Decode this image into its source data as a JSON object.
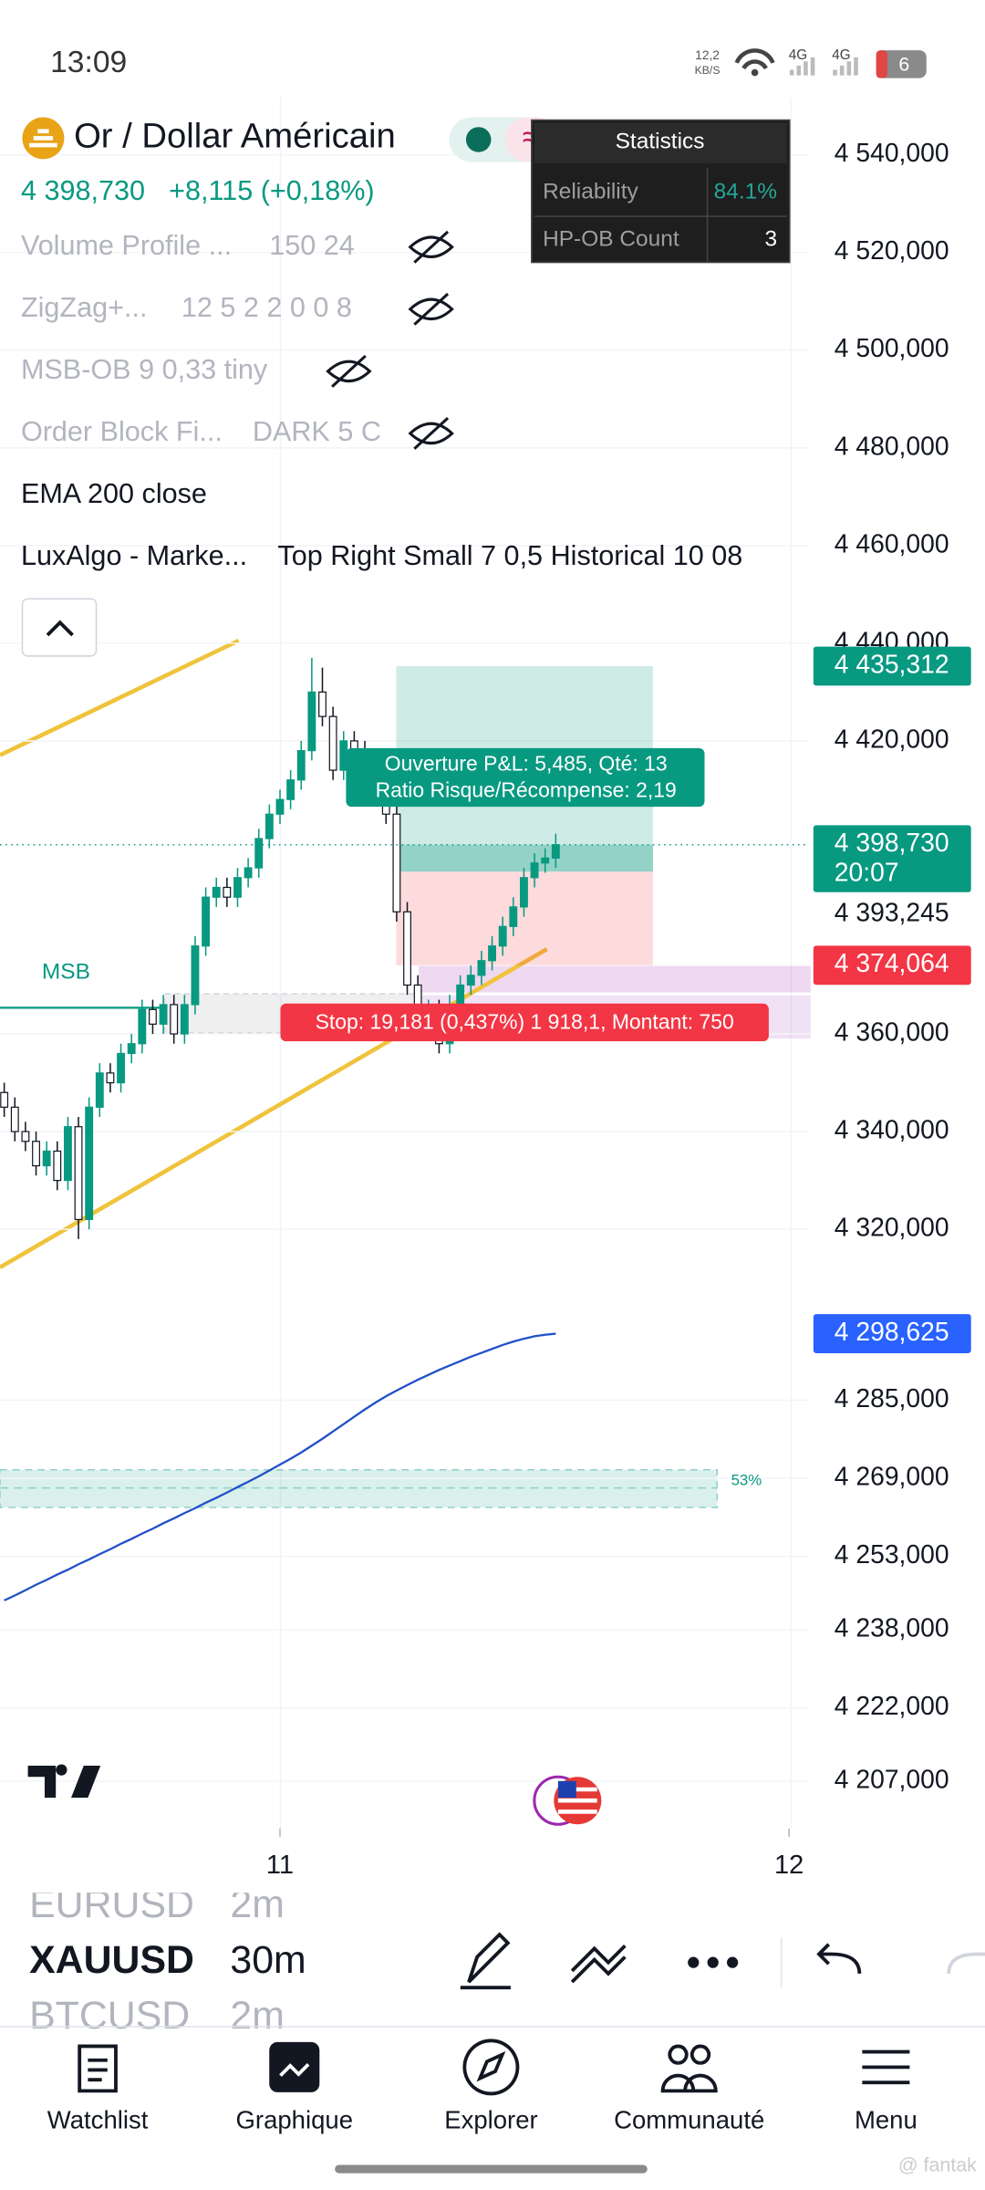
{
  "status_bar": {
    "time": "13:09",
    "net_speed": "12,2",
    "net_unit": "KB/S",
    "signal_1": "4G",
    "signal_2": "4G",
    "battery": "6"
  },
  "symbol": {
    "name": "Or / Dollar Américain",
    "price": "4 398,730",
    "change": "+8,115 (+0,18%)"
  },
  "indicators": [
    {
      "name": "Volume Profile ...",
      "params": "150 24"
    },
    {
      "name": "ZigZag+...",
      "params": "12 5 2 2 0 0 8"
    },
    {
      "name": "MSB-OB 9 0,33 tiny",
      "params": ""
    },
    {
      "name": "Order Block Fi...",
      "params": "DARK 5 C"
    },
    {
      "name": "EMA 200 close",
      "params": ""
    },
    {
      "name": "LuxAlgo - Marke...",
      "params": "Top Right Small 7 0,5 Historical 10 08"
    }
  ],
  "statistics": {
    "title": "Statistics",
    "rows": [
      {
        "label": "Reliability",
        "value": "84.1%"
      },
      {
        "label": "HP-OB Count",
        "value": "3"
      }
    ]
  },
  "chart_data": {
    "type": "candlestick",
    "ylim": [
      4197.3,
      4551.7
    ],
    "xlim": [
      -0.4,
      75.9
    ],
    "yticks": [
      {
        "value": 4540,
        "label": "4 540,000"
      },
      {
        "value": 4520,
        "label": "4 520,000"
      },
      {
        "value": 4500,
        "label": "4 500,000"
      },
      {
        "value": 4480,
        "label": "4 480,000"
      },
      {
        "value": 4460,
        "label": "4 460,000"
      },
      {
        "value": 4440,
        "label": "4 440,000"
      },
      {
        "value": 4420,
        "label": "4 420,000"
      },
      {
        "value": 4360,
        "label": "4 360,000"
      },
      {
        "value": 4340,
        "label": "4 340,000"
      },
      {
        "value": 4320,
        "label": "4 320,000"
      },
      {
        "value": 4285,
        "label": "4 285,000"
      },
      {
        "value": 4269,
        "label": "4 269,000"
      },
      {
        "value": 4253,
        "label": "4 253,000"
      },
      {
        "value": 4238,
        "label": "4 238,000"
      },
      {
        "value": 4222,
        "label": "4 222,000"
      },
      {
        "value": 4207,
        "label": "4 207,000"
      }
    ],
    "xticks": [
      {
        "value": 26,
        "label": "11"
      },
      {
        "value": 74,
        "label": "12"
      }
    ],
    "up_color": "#089981",
    "down_color": "#ffffff",
    "x": [
      0,
      1,
      2,
      3,
      4,
      5,
      6,
      7,
      8,
      9,
      10,
      11,
      12,
      13,
      14,
      15,
      16,
      17,
      18,
      19,
      20,
      21,
      22,
      23,
      24,
      25,
      26,
      27,
      28,
      29,
      30,
      31,
      32,
      33,
      34,
      35,
      36,
      37,
      38,
      39,
      40,
      41,
      42,
      43,
      44,
      45,
      46,
      47,
      48,
      49,
      50,
      51,
      52
    ],
    "open": [
      4348,
      4345,
      4340,
      4338,
      4333,
      4336,
      4330,
      4341,
      4322,
      4345,
      4352,
      4350,
      4356,
      4358,
      4365,
      4362,
      4366,
      4360,
      4366,
      4378,
      4388,
      4390,
      4388,
      4392,
      4394,
      4400,
      4405,
      4408,
      4412,
      4418,
      4430,
      4425,
      4414,
      4420,
      4418,
      4415,
      4412,
      4405,
      4385,
      4370,
      4362,
      4365,
      4358,
      4366,
      4370,
      4372,
      4375,
      4378,
      4382,
      4386,
      4392,
      4395,
      4396
    ],
    "high": [
      4350,
      4347,
      4342,
      4340,
      4338,
      4338,
      4343,
      4343,
      4347,
      4354,
      4354,
      4358,
      4360,
      4367,
      4367,
      4368,
      4368,
      4368,
      4380,
      4390,
      4392,
      4392,
      4394,
      4396,
      4402,
      4407,
      4410,
      4414,
      4420,
      4437,
      4435,
      4427,
      4422,
      4422,
      4420,
      4417,
      4414,
      4407,
      4387,
      4372,
      4367,
      4367,
      4368,
      4372,
      4374,
      4377,
      4380,
      4384,
      4388,
      4394,
      4397,
      4398,
      4401
    ],
    "low": [
      4343,
      4338,
      4336,
      4331,
      4331,
      4328,
      4328,
      4318,
      4320,
      4343,
      4348,
      4348,
      4354,
      4356,
      4360,
      4360,
      4358,
      4358,
      4364,
      4376,
      4386,
      4386,
      4386,
      4390,
      4392,
      4398,
      4403,
      4406,
      4410,
      4416,
      4423,
      4412,
      4412,
      4416,
      4413,
      4410,
      4403,
      4383,
      4368,
      4360,
      4360,
      4356,
      4356,
      4364,
      4368,
      4370,
      4373,
      4376,
      4380,
      4384,
      4390,
      4393,
      4394
    ],
    "close": [
      4345,
      4340,
      4338,
      4333,
      4336,
      4330,
      4341,
      4322,
      4345,
      4352,
      4350,
      4356,
      4358,
      4365,
      4362,
      4366,
      4360,
      4366,
      4378,
      4388,
      4390,
      4388,
      4392,
      4394,
      4400,
      4405,
      4408,
      4412,
      4418,
      4430,
      4425,
      4414,
      4420,
      4418,
      4415,
      4412,
      4405,
      4385,
      4370,
      4362,
      4365,
      4358,
      4366,
      4370,
      4372,
      4375,
      4378,
      4382,
      4386,
      4392,
      4395,
      4396,
      4398.73
    ],
    "ema": {
      "color": "#2150c8",
      "values": [
        4244.0,
        4245.0,
        4246.1,
        4247.2,
        4248.2,
        4249.3,
        4250.3,
        4251.4,
        4252.4,
        4253.5,
        4254.5,
        4255.6,
        4256.6,
        4257.7,
        4258.7,
        4259.8,
        4260.8,
        4261.9,
        4262.9,
        4264.0,
        4265.0,
        4266.1,
        4267.2,
        4268.3,
        4269.4,
        4270.6,
        4271.8,
        4273.0,
        4274.3,
        4275.7,
        4277.1,
        4278.6,
        4280.1,
        4281.6,
        4283.1,
        4284.5,
        4285.8,
        4287.0,
        4288.1,
        4289.2,
        4290.2,
        4291.2,
        4292.1,
        4293.0,
        4293.9,
        4294.7,
        4295.5,
        4296.3,
        4297.0,
        4297.6,
        4298.1,
        4298.4,
        4298.625
      ]
    },
    "price_labels": [
      {
        "value": 4435.312,
        "label": "4 435,312",
        "color": "#089981"
      },
      {
        "value": 4398.73,
        "label": "4 398,730",
        "sublabel": "20:07",
        "color": "#089981"
      },
      {
        "value": 4393.245,
        "label": "4 393,245"
      },
      {
        "value": 4374.064,
        "label": "4 374,064",
        "color": "#f23645"
      },
      {
        "value": 4298.625,
        "label": "4 298,625",
        "color": "#2962ff"
      }
    ],
    "position": {
      "label_1": "Ouverture P&L: 5,485, Qté: 13",
      "label_2": "Ratio Risque/Récompense: 2,19",
      "stop_label": "Stop: 19,181 (0,437%) 1 918,1, Montant: 750"
    },
    "annotations": {
      "msb": "MSB",
      "zone_pct": "53%"
    }
  },
  "toolbar": {
    "symbols": [
      {
        "symbol": "EURUSD",
        "interval": "2m"
      },
      {
        "symbol": "XAUUSD",
        "interval": "30m"
      },
      {
        "symbol": "BTCUSD",
        "interval": "2m"
      }
    ]
  },
  "nav": [
    "Watchlist",
    "Graphique",
    "Explorer",
    "Communauté",
    "Menu"
  ],
  "watermark": "@ fantak"
}
